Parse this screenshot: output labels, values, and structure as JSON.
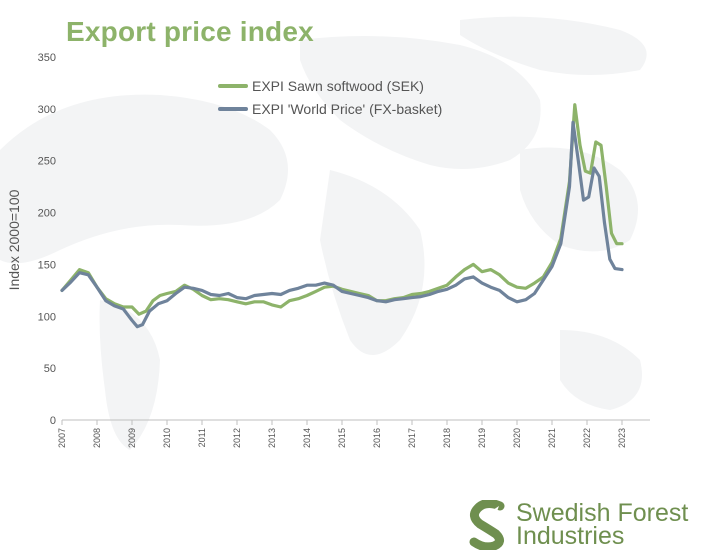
{
  "title": "Export price index",
  "logo": {
    "line1": "Swedish Forest",
    "line2": "Industries"
  },
  "colors": {
    "title": "#8db36a",
    "sawn": "#8db36a",
    "world": "#6f839b",
    "axis": "#bfbfbf",
    "text": "#555555",
    "logo": "#6f8f4f"
  },
  "chart_data": {
    "type": "line",
    "ylabel": "Index 2000=100",
    "ylim": [
      0,
      350
    ],
    "yticks": [
      0,
      50,
      100,
      150,
      200,
      250,
      300,
      350
    ],
    "xlim": [
      2007,
      2023.8
    ],
    "xticks": [
      "2007",
      "2008",
      "2009",
      "2010",
      "2011",
      "2012",
      "2013",
      "2014",
      "2015",
      "2016",
      "2017",
      "2018",
      "2019",
      "2020",
      "2021",
      "2022",
      "2023"
    ],
    "grid": false,
    "legend_position": "top-left",
    "series": [
      {
        "name": "EXPI Sawn softwood (SEK)",
        "color": "#8db36a",
        "points": [
          [
            2007.0,
            125
          ],
          [
            2007.25,
            135
          ],
          [
            2007.5,
            145
          ],
          [
            2007.75,
            142
          ],
          [
            2008.0,
            128
          ],
          [
            2008.25,
            117
          ],
          [
            2008.5,
            112
          ],
          [
            2008.75,
            109
          ],
          [
            2009.0,
            109
          ],
          [
            2009.2,
            102
          ],
          [
            2009.4,
            105
          ],
          [
            2009.6,
            115
          ],
          [
            2009.8,
            120
          ],
          [
            2010.0,
            122
          ],
          [
            2010.25,
            124
          ],
          [
            2010.5,
            130
          ],
          [
            2010.75,
            126
          ],
          [
            2011.0,
            120
          ],
          [
            2011.25,
            116
          ],
          [
            2011.5,
            117
          ],
          [
            2011.75,
            116
          ],
          [
            2012.0,
            114
          ],
          [
            2012.25,
            112
          ],
          [
            2012.5,
            114
          ],
          [
            2012.75,
            114
          ],
          [
            2013.0,
            111
          ],
          [
            2013.25,
            109
          ],
          [
            2013.5,
            115
          ],
          [
            2013.75,
            117
          ],
          [
            2014.0,
            120
          ],
          [
            2014.25,
            124
          ],
          [
            2014.5,
            128
          ],
          [
            2014.75,
            129
          ],
          [
            2015.0,
            126
          ],
          [
            2015.25,
            124
          ],
          [
            2015.5,
            122
          ],
          [
            2015.75,
            120
          ],
          [
            2016.0,
            115
          ],
          [
            2016.25,
            115
          ],
          [
            2016.5,
            117
          ],
          [
            2016.75,
            118
          ],
          [
            2017.0,
            121
          ],
          [
            2017.25,
            122
          ],
          [
            2017.5,
            124
          ],
          [
            2017.75,
            127
          ],
          [
            2018.0,
            130
          ],
          [
            2018.25,
            138
          ],
          [
            2018.5,
            145
          ],
          [
            2018.75,
            150
          ],
          [
            2019.0,
            143
          ],
          [
            2019.25,
            145
          ],
          [
            2019.5,
            140
          ],
          [
            2019.75,
            132
          ],
          [
            2020.0,
            128
          ],
          [
            2020.25,
            127
          ],
          [
            2020.5,
            132
          ],
          [
            2020.75,
            138
          ],
          [
            2021.0,
            152
          ],
          [
            2021.25,
            175
          ],
          [
            2021.5,
            230
          ],
          [
            2021.65,
            304
          ],
          [
            2021.8,
            265
          ],
          [
            2021.95,
            240
          ],
          [
            2022.1,
            238
          ],
          [
            2022.25,
            268
          ],
          [
            2022.4,
            265
          ],
          [
            2022.55,
            225
          ],
          [
            2022.7,
            180
          ],
          [
            2022.85,
            170
          ],
          [
            2023.0,
            170
          ]
        ]
      },
      {
        "name": "EXPI 'World Price' (FX-basket)",
        "color": "#6f839b",
        "points": [
          [
            2007.0,
            125
          ],
          [
            2007.25,
            133
          ],
          [
            2007.5,
            142
          ],
          [
            2007.75,
            140
          ],
          [
            2008.0,
            128
          ],
          [
            2008.25,
            115
          ],
          [
            2008.5,
            110
          ],
          [
            2008.75,
            107
          ],
          [
            2009.0,
            96
          ],
          [
            2009.15,
            90
          ],
          [
            2009.3,
            92
          ],
          [
            2009.5,
            105
          ],
          [
            2009.75,
            112
          ],
          [
            2010.0,
            115
          ],
          [
            2010.25,
            122
          ],
          [
            2010.5,
            128
          ],
          [
            2010.75,
            127
          ],
          [
            2011.0,
            125
          ],
          [
            2011.25,
            121
          ],
          [
            2011.5,
            120
          ],
          [
            2011.75,
            122
          ],
          [
            2012.0,
            118
          ],
          [
            2012.25,
            117
          ],
          [
            2012.5,
            120
          ],
          [
            2012.75,
            121
          ],
          [
            2013.0,
            122
          ],
          [
            2013.25,
            121
          ],
          [
            2013.5,
            125
          ],
          [
            2013.75,
            127
          ],
          [
            2014.0,
            130
          ],
          [
            2014.25,
            130
          ],
          [
            2014.5,
            132
          ],
          [
            2014.75,
            130
          ],
          [
            2015.0,
            124
          ],
          [
            2015.25,
            122
          ],
          [
            2015.5,
            120
          ],
          [
            2015.75,
            118
          ],
          [
            2016.0,
            115
          ],
          [
            2016.25,
            114
          ],
          [
            2016.5,
            116
          ],
          [
            2016.75,
            117
          ],
          [
            2017.0,
            118
          ],
          [
            2017.25,
            119
          ],
          [
            2017.5,
            121
          ],
          [
            2017.75,
            124
          ],
          [
            2018.0,
            126
          ],
          [
            2018.25,
            130
          ],
          [
            2018.5,
            136
          ],
          [
            2018.75,
            138
          ],
          [
            2019.0,
            132
          ],
          [
            2019.25,
            128
          ],
          [
            2019.5,
            125
          ],
          [
            2019.75,
            118
          ],
          [
            2020.0,
            114
          ],
          [
            2020.25,
            116
          ],
          [
            2020.5,
            122
          ],
          [
            2020.75,
            135
          ],
          [
            2021.0,
            148
          ],
          [
            2021.25,
            170
          ],
          [
            2021.5,
            225
          ],
          [
            2021.6,
            287
          ],
          [
            2021.75,
            250
          ],
          [
            2021.9,
            212
          ],
          [
            2022.05,
            215
          ],
          [
            2022.2,
            243
          ],
          [
            2022.35,
            235
          ],
          [
            2022.5,
            190
          ],
          [
            2022.65,
            155
          ],
          [
            2022.8,
            146
          ],
          [
            2023.0,
            145
          ]
        ]
      }
    ]
  }
}
